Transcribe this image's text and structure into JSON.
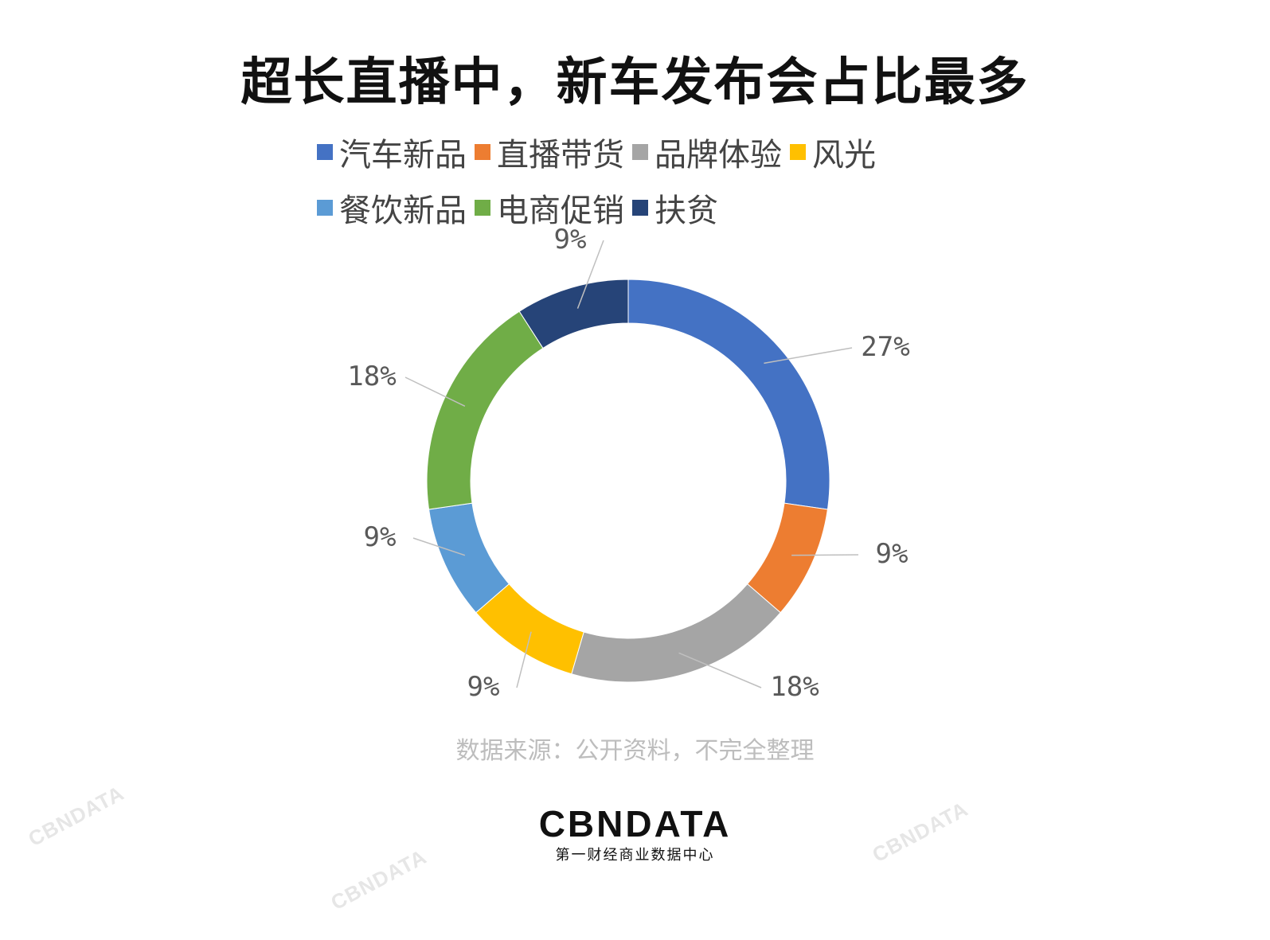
{
  "chart_data": {
    "type": "pie",
    "style": "donut",
    "title": "超长直播中，新车发布会占比最多",
    "legend_position": "top",
    "categories": [
      "汽车新品",
      "直播带货",
      "品牌体验",
      "风光",
      "餐饮新品",
      "电商促销",
      "扶贫"
    ],
    "values": [
      27,
      9,
      18,
      9,
      9,
      18,
      9
    ],
    "labels": [
      "27%",
      "9%",
      "18%",
      "9%",
      "9%",
      "18%",
      "9%"
    ],
    "colors": [
      "#4472C4",
      "#ED7D31",
      "#A5A5A5",
      "#FFC000",
      "#5B9BD5",
      "#70AD47",
      "#264478"
    ]
  },
  "source_note": "数据来源：公开资料，不完全整理",
  "brand": {
    "logo_text": "CBNDATA",
    "tagline": "第一财经商业数据中心"
  }
}
